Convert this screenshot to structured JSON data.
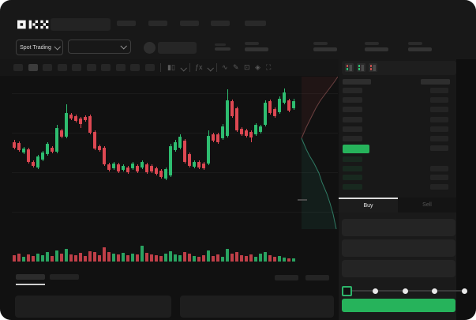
{
  "app": {
    "name": "OKX",
    "logo_text": "OKX"
  },
  "subheader": {
    "market_selector_label": "Spot Trading",
    "stats_placeholder_count": 4
  },
  "header": {
    "nav_placeholder_count": 5
  },
  "chart_toolbar": {
    "timeframe_count": 10,
    "active_timeframe_index": 1,
    "icons": [
      "candle-type-icon",
      "chevron-down-icon",
      "indicators-icon",
      "chevron-down-icon",
      "line-tool-icon",
      "draw-icon",
      "camera-icon",
      "settings-icon",
      "fullscreen-icon"
    ]
  },
  "orderbook": {
    "view_icons": [
      "book-combined-icon",
      "book-bids-icon",
      "book-asks-icon"
    ],
    "ask_row_count": 6,
    "bid_row_count": 4,
    "bid_rows_right_bar": [
      false,
      true,
      true,
      true
    ],
    "mid_price_color": "#26b35b"
  },
  "trade_panel": {
    "buy_tab_label": "Buy",
    "sell_tab_label": "Sell",
    "field_count": 3,
    "slider_stop_count": 5,
    "slider_value_index": 0,
    "submit_button_label": "",
    "submit_button_color": "#26b35b"
  },
  "colors": {
    "up": "#2ebd70",
    "down": "#dd4852",
    "accent_green": "#26b35b",
    "depth_ask_line": "#6b4040",
    "depth_bid_line": "#2f7a63"
  },
  "chart_data": [
    {
      "type": "candlestick",
      "title": "",
      "xlabel": "",
      "ylabel": "",
      "axis_labels_visible": false,
      "units": "relative (no axis labels shown in screenshot)",
      "ylim": [
        70,
        200
      ],
      "x_start": 16,
      "x_step": 6,
      "y_origin": 300,
      "candles_ohlc": [
        [
          120,
          123,
          111,
          113
        ],
        [
          119,
          121,
          108,
          110
        ],
        [
          107,
          114,
          105,
          112
        ],
        [
          111,
          113,
          93,
          95
        ],
        [
          95,
          97,
          88,
          90
        ],
        [
          88,
          104,
          86,
          102
        ],
        [
          98,
          109,
          96,
          107
        ],
        [
          105,
          120,
          103,
          118
        ],
        [
          113,
          115,
          106,
          108
        ],
        [
          108,
          142,
          106,
          138
        ],
        [
          135,
          137,
          125,
          127
        ],
        [
          127,
          168,
          125,
          157
        ],
        [
          155,
          157,
          148,
          150
        ],
        [
          153,
          155,
          145,
          147
        ],
        [
          150,
          152,
          138,
          143
        ],
        [
          152,
          154,
          146,
          148
        ],
        [
          153,
          155,
          130,
          132
        ],
        [
          133,
          135,
          110,
          112
        ],
        [
          115,
          117,
          108,
          110
        ],
        [
          113,
          115,
          90,
          92
        ],
        [
          92,
          94,
          83,
          85
        ],
        [
          87,
          95,
          85,
          93
        ],
        [
          92,
          94,
          81,
          83
        ],
        [
          85,
          92,
          83,
          90
        ],
        [
          88,
          90,
          80,
          82
        ],
        [
          87,
          95,
          85,
          93
        ],
        [
          90,
          92,
          81,
          83
        ],
        [
          88,
          97,
          86,
          95
        ],
        [
          92,
          94,
          80,
          82
        ],
        [
          90,
          92,
          81,
          83
        ],
        [
          87,
          89,
          78,
          80
        ],
        [
          84,
          86,
          74,
          76
        ],
        [
          74,
          88,
          72,
          86
        ],
        [
          78,
          118,
          76,
          115
        ],
        [
          110,
          123,
          108,
          120
        ],
        [
          113,
          130,
          111,
          127
        ],
        [
          122,
          124,
          93,
          95
        ],
        [
          105,
          107,
          88,
          90
        ],
        [
          89,
          97,
          87,
          95
        ],
        [
          95,
          97,
          86,
          88
        ],
        [
          93,
          95,
          85,
          87
        ],
        [
          93,
          135,
          91,
          128
        ],
        [
          130,
          132,
          120,
          122
        ],
        [
          130,
          132,
          118,
          120
        ],
        [
          125,
          143,
          123,
          140
        ],
        [
          128,
          187,
          126,
          173
        ],
        [
          172,
          174,
          151,
          153
        ],
        [
          163,
          165,
          133,
          135
        ],
        [
          137,
          139,
          128,
          130
        ],
        [
          135,
          137,
          126,
          128
        ],
        [
          133,
          135,
          120,
          126
        ],
        [
          130,
          144,
          128,
          142
        ],
        [
          133,
          142,
          131,
          140
        ],
        [
          142,
          173,
          140,
          170
        ],
        [
          172,
          174,
          155,
          157
        ],
        [
          162,
          164,
          151,
          153
        ],
        [
          158,
          178,
          156,
          175
        ],
        [
          170,
          188,
          168,
          183
        ],
        [
          173,
          175,
          158,
          160
        ],
        [
          163,
          175,
          161,
          172
        ]
      ]
    },
    {
      "type": "bar",
      "title": "volume",
      "axis_labels_visible": false,
      "units": "relative bar heights (px)",
      "baseline_y": 331,
      "values": [
        8,
        10,
        6,
        9,
        7,
        10,
        8,
        12,
        7,
        14,
        10,
        16,
        9,
        8,
        11,
        7,
        13,
        12,
        8,
        18,
        12,
        10,
        9,
        11,
        8,
        10,
        9,
        20,
        11,
        9,
        8,
        7,
        10,
        13,
        9,
        8,
        12,
        10,
        7,
        6,
        8,
        14,
        7,
        9,
        6,
        16,
        10,
        12,
        8,
        7,
        9,
        6,
        10,
        12,
        8,
        6,
        7,
        5,
        4,
        4
      ]
    },
    {
      "type": "area",
      "title": "market-depth",
      "axis_labels_visible": false,
      "ask_points": [
        [
          2,
          78
        ],
        [
          8,
          64
        ],
        [
          12,
          56
        ],
        [
          16,
          48
        ],
        [
          20,
          40
        ],
        [
          26,
          30
        ],
        [
          32,
          22
        ],
        [
          38,
          14
        ],
        [
          44,
          6
        ],
        [
          48,
          0
        ]
      ],
      "bid_points": [
        [
          2,
          78
        ],
        [
          8,
          92
        ],
        [
          12,
          100
        ],
        [
          18,
          110
        ],
        [
          24,
          122
        ],
        [
          28,
          134
        ],
        [
          34,
          148
        ],
        [
          38,
          160
        ],
        [
          42,
          174
        ],
        [
          46,
          193
        ]
      ]
    }
  ]
}
